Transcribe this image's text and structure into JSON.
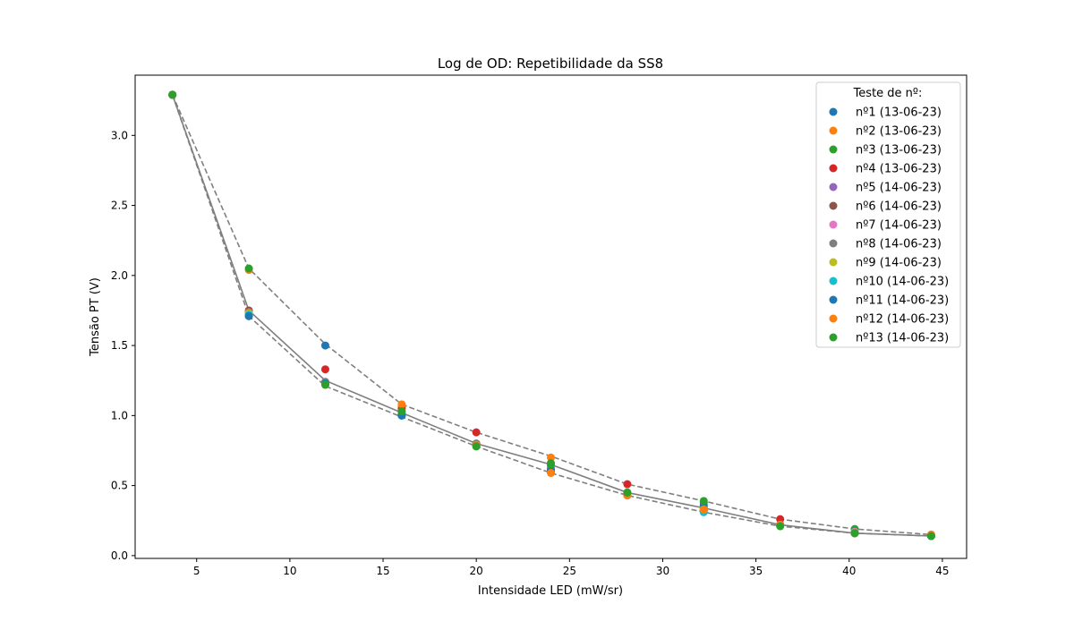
{
  "chart_data": {
    "type": "scatter",
    "title": "Log de OD: Repetibilidade da SS8",
    "xlabel": "Intensidade LED (mW/sr)",
    "ylabel": "Tensão PT (V)",
    "xlim": [
      1.7,
      46.3
    ],
    "ylim": [
      -0.02,
      3.43
    ],
    "xticks": [
      5,
      10,
      15,
      20,
      25,
      30,
      35,
      40,
      45
    ],
    "yticks": [
      0.0,
      0.5,
      1.0,
      1.5,
      2.0,
      2.5,
      3.0
    ],
    "xtick_labels": [
      "5",
      "10",
      "15",
      "20",
      "25",
      "30",
      "35",
      "40",
      "45"
    ],
    "ytick_labels": [
      "0.0",
      "0.5",
      "1.0",
      "1.5",
      "2.0",
      "2.5",
      "3.0"
    ],
    "grid": false,
    "legend": {
      "title": "Teste de nº:",
      "placement": "upper right"
    },
    "x": [
      3.7,
      7.8,
      11.9,
      16.0,
      20.0,
      24.0,
      28.1,
      32.2,
      36.3,
      40.3,
      44.4
    ],
    "series": [
      {
        "name": "nº1 (13-06-23)",
        "color": "#1f77b4",
        "y": [
          3.29,
          1.71,
          1.5,
          1.0,
          0.79,
          0.61,
          0.44,
          0.35,
          0.22,
          0.17,
          0.14
        ]
      },
      {
        "name": "nº2 (13-06-23)",
        "color": "#ff7f0e",
        "y": [
          3.29,
          1.73,
          1.23,
          1.07,
          0.79,
          0.7,
          0.43,
          0.33,
          0.22,
          0.16,
          0.15
        ]
      },
      {
        "name": "nº3 (13-06-23)",
        "color": "#2ca02c",
        "y": [
          3.29,
          1.74,
          1.22,
          1.01,
          0.78,
          0.66,
          0.44,
          0.38,
          0.21,
          0.19,
          0.14
        ]
      },
      {
        "name": "nº4 (13-06-23)",
        "color": "#d62728",
        "y": [
          3.29,
          1.75,
          1.33,
          1.05,
          0.88,
          0.6,
          0.51,
          0.32,
          0.26,
          0.16,
          0.14
        ]
      },
      {
        "name": "nº5 (14-06-23)",
        "color": "#9467bd",
        "y": [
          3.29,
          1.72,
          1.24,
          1.02,
          0.79,
          0.62,
          0.44,
          0.33,
          0.22,
          0.16,
          0.14
        ]
      },
      {
        "name": "nº6 (14-06-23)",
        "color": "#8c564b",
        "y": [
          3.29,
          1.72,
          1.23,
          1.01,
          0.8,
          0.63,
          0.45,
          0.34,
          0.22,
          0.16,
          0.14
        ]
      },
      {
        "name": "nº7 (14-06-23)",
        "color": "#e377c2",
        "y": [
          3.29,
          1.73,
          1.23,
          1.02,
          0.79,
          0.64,
          0.44,
          0.34,
          0.22,
          0.17,
          0.14
        ]
      },
      {
        "name": "nº8 (14-06-23)",
        "color": "#7f7f7f",
        "y": [
          3.29,
          1.74,
          1.24,
          1.01,
          0.8,
          0.62,
          0.45,
          0.33,
          0.22,
          0.16,
          0.14
        ]
      },
      {
        "name": "nº9 (14-06-23)",
        "color": "#bcbd22",
        "y": [
          3.29,
          1.73,
          1.23,
          1.02,
          0.79,
          0.63,
          0.44,
          0.34,
          0.22,
          0.16,
          0.14
        ]
      },
      {
        "name": "nº10 (14-06-23)",
        "color": "#17becf",
        "y": [
          3.29,
          1.72,
          1.23,
          1.0,
          0.79,
          0.62,
          0.44,
          0.31,
          0.22,
          0.16,
          0.14
        ]
      },
      {
        "name": "nº11 (14-06-23)",
        "color": "#1f77b4",
        "y": [
          3.29,
          1.71,
          1.23,
          1.0,
          0.79,
          0.61,
          0.44,
          0.36,
          0.22,
          0.16,
          0.14
        ]
      },
      {
        "name": "nº12 (14-06-23)",
        "color": "#ff7f0e",
        "y": [
          3.29,
          2.04,
          1.22,
          1.08,
          0.79,
          0.59,
          0.43,
          0.33,
          0.22,
          0.16,
          0.15
        ]
      },
      {
        "name": "nº13 (14-06-23)",
        "color": "#2ca02c",
        "y": [
          3.29,
          2.05,
          1.22,
          1.03,
          0.78,
          0.65,
          0.45,
          0.39,
          0.21,
          0.16,
          0.14
        ]
      }
    ],
    "lines": [
      {
        "style": "dashed",
        "color": "#7f7f7f",
        "y": [
          3.29,
          2.05,
          1.51,
          1.08,
          0.88,
          0.71,
          0.51,
          0.39,
          0.26,
          0.19,
          0.15
        ]
      },
      {
        "style": "solid",
        "color": "#7f7f7f",
        "y": [
          3.29,
          1.75,
          1.25,
          1.02,
          0.8,
          0.65,
          0.45,
          0.34,
          0.22,
          0.16,
          0.14
        ]
      },
      {
        "style": "dashed",
        "color": "#7f7f7f",
        "y": [
          3.29,
          1.71,
          1.21,
          0.99,
          0.78,
          0.59,
          0.43,
          0.31,
          0.21,
          0.16,
          0.14
        ]
      }
    ]
  }
}
